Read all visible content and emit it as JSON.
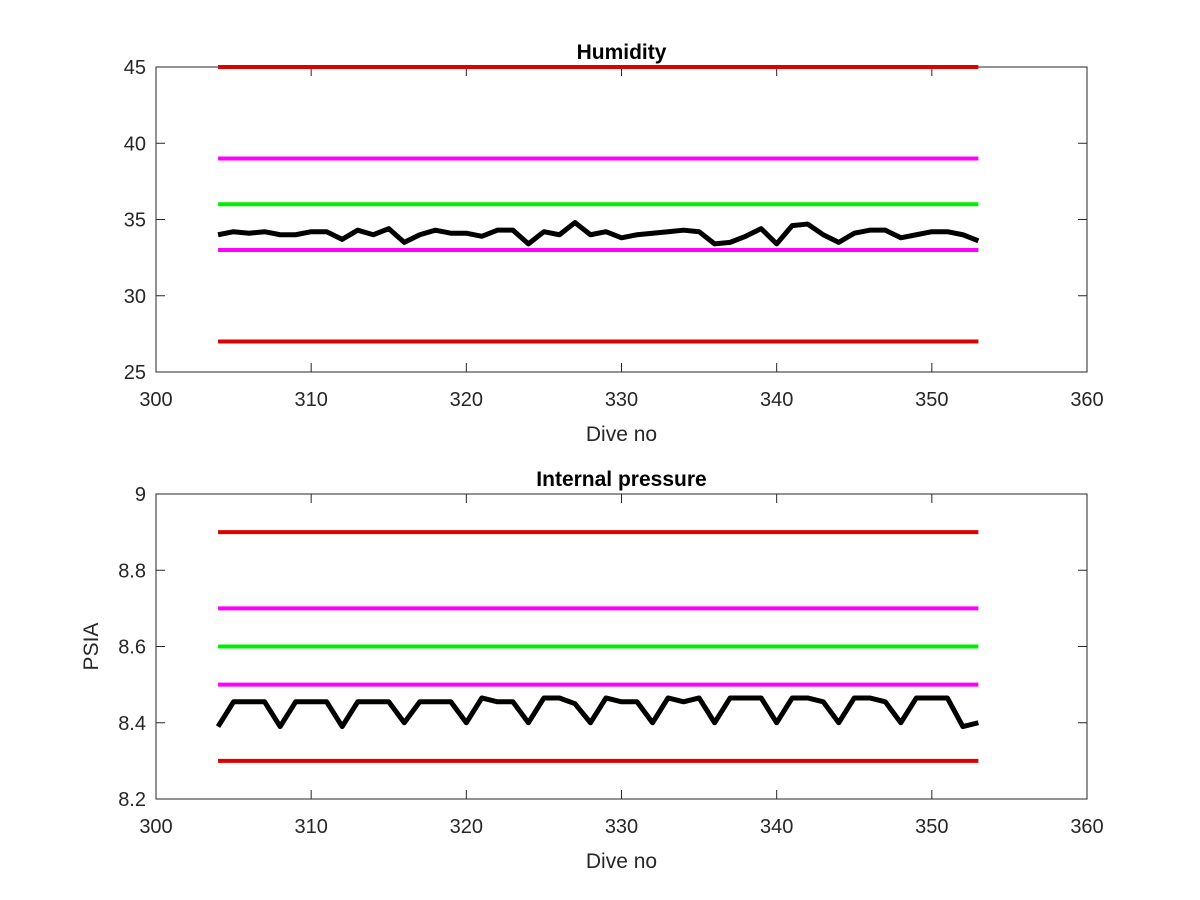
{
  "chart_data": [
    {
      "type": "line",
      "title": "Humidity",
      "xlabel": "Dive no",
      "ylabel": "",
      "xlim": [
        300,
        360
      ],
      "ylim": [
        25,
        45
      ],
      "xticks": [
        "300",
        "310",
        "320",
        "330",
        "340",
        "350",
        "360"
      ],
      "yticks": [
        "25",
        "30",
        "35",
        "40",
        "45"
      ],
      "grid": false,
      "series": [
        {
          "color": "#dd0000",
          "x": [
            304,
            353
          ],
          "values": [
            45,
            45
          ]
        },
        {
          "color": "#ff00ff",
          "x": [
            304,
            353
          ],
          "values": [
            39,
            39
          ]
        },
        {
          "color": "#00ee00",
          "x": [
            304,
            353
          ],
          "values": [
            36,
            36
          ]
        },
        {
          "color": "#ff00ff",
          "x": [
            304,
            353
          ],
          "values": [
            33,
            33
          ]
        },
        {
          "color": "#dd0000",
          "x": [
            304,
            353
          ],
          "values": [
            27,
            27
          ]
        },
        {
          "color": "#000000",
          "x": [
            304,
            305,
            306,
            307,
            308,
            309,
            310,
            311,
            312,
            313,
            314,
            315,
            316,
            317,
            318,
            319,
            320,
            321,
            322,
            323,
            324,
            325,
            326,
            327,
            328,
            329,
            330,
            331,
            332,
            333,
            334,
            335,
            336,
            337,
            338,
            339,
            340,
            341,
            342,
            343,
            344,
            345,
            346,
            347,
            348,
            349,
            350,
            351,
            352,
            353
          ],
          "values": [
            34.0,
            34.2,
            34.1,
            34.2,
            34.0,
            34.0,
            34.2,
            34.2,
            33.7,
            34.3,
            34.0,
            34.4,
            33.5,
            34.0,
            34.3,
            34.1,
            34.1,
            33.9,
            34.3,
            34.3,
            33.4,
            34.2,
            34.0,
            34.8,
            34.0,
            34.2,
            33.8,
            34.0,
            34.1,
            34.2,
            34.3,
            34.2,
            33.4,
            33.5,
            33.9,
            34.4,
            33.4,
            34.6,
            34.7,
            34.0,
            33.5,
            34.1,
            34.3,
            34.3,
            33.8,
            34.0,
            34.2,
            34.2,
            34.0,
            33.6
          ]
        }
      ]
    },
    {
      "type": "line",
      "title": "Internal pressure",
      "xlabel": "Dive no",
      "ylabel": "PSIA",
      "xlim": [
        300,
        360
      ],
      "ylim": [
        8.2,
        9
      ],
      "xticks": [
        "300",
        "310",
        "320",
        "330",
        "340",
        "350",
        "360"
      ],
      "yticks": [
        "8.2",
        "8.4",
        "8.6",
        "8.8",
        "9"
      ],
      "grid": false,
      "series": [
        {
          "color": "#dd0000",
          "x": [
            304,
            353
          ],
          "values": [
            8.9,
            8.9
          ]
        },
        {
          "color": "#ff00ff",
          "x": [
            304,
            353
          ],
          "values": [
            8.7,
            8.7
          ]
        },
        {
          "color": "#00ee00",
          "x": [
            304,
            353
          ],
          "values": [
            8.6,
            8.6
          ]
        },
        {
          "color": "#ff00ff",
          "x": [
            304,
            353
          ],
          "values": [
            8.5,
            8.5
          ]
        },
        {
          "color": "#dd0000",
          "x": [
            304,
            353
          ],
          "values": [
            8.3,
            8.3
          ]
        },
        {
          "color": "#000000",
          "x": [
            304,
            305,
            306,
            307,
            308,
            309,
            310,
            311,
            312,
            313,
            314,
            315,
            316,
            317,
            318,
            319,
            320,
            321,
            322,
            323,
            324,
            325,
            326,
            327,
            328,
            329,
            330,
            331,
            332,
            333,
            334,
            335,
            336,
            337,
            338,
            339,
            340,
            341,
            342,
            343,
            344,
            345,
            346,
            347,
            348,
            349,
            350,
            351,
            352,
            353
          ],
          "values": [
            8.39,
            8.455,
            8.455,
            8.455,
            8.39,
            8.455,
            8.455,
            8.455,
            8.39,
            8.455,
            8.455,
            8.455,
            8.4,
            8.455,
            8.455,
            8.455,
            8.4,
            8.465,
            8.455,
            8.455,
            8.4,
            8.465,
            8.465,
            8.45,
            8.4,
            8.465,
            8.455,
            8.455,
            8.4,
            8.465,
            8.455,
            8.465,
            8.4,
            8.465,
            8.465,
            8.465,
            8.4,
            8.465,
            8.465,
            8.455,
            8.4,
            8.465,
            8.465,
            8.455,
            8.4,
            8.465,
            8.465,
            8.465,
            8.39,
            8.4
          ]
        }
      ]
    }
  ]
}
